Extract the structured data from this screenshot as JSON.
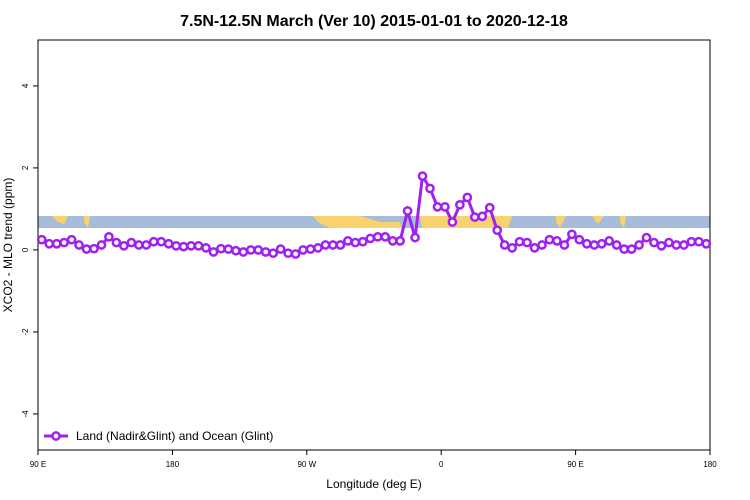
{
  "chart_data": {
    "type": "line",
    "title": "7.5N-12.5N March (Ver 10)   2015-01-01 to 2020-12-18",
    "x_label": "Longitude (deg E)",
    "y_label": "XCO2 - MLO trend (ppm)",
    "xlim": [
      90,
      540
    ],
    "xticks": [
      {
        "value": 90,
        "label": "90 E"
      },
      180,
      {
        "value": 270,
        "label": "90 W"
      },
      {
        "value": 360,
        "label": "0"
      },
      {
        "value": 450,
        "label": "90 E"
      },
      {
        "value": 540,
        "label": "180"
      }
    ],
    "ylim": [
      -4.88,
      5.12
    ],
    "yticks": [
      -4,
      -2,
      0,
      2,
      4
    ],
    "legend": "bottom-left",
    "x": [
      92.5,
      97.5,
      102.5,
      107.5,
      112.5,
      117.5,
      122.5,
      127.5,
      132.5,
      137.5,
      142.5,
      147.5,
      152.5,
      157.5,
      162.5,
      167.5,
      172.5,
      177.5,
      182.5,
      187.5,
      192.5,
      197.5,
      202.5,
      207.5,
      212.5,
      217.5,
      222.5,
      227.5,
      232.5,
      237.5,
      242.5,
      247.5,
      252.5,
      257.5,
      262.5,
      267.5,
      272.5,
      277.5,
      282.5,
      287.5,
      292.5,
      297.5,
      302.5,
      307.5,
      312.5,
      317.5,
      322.5,
      327.5,
      332.5,
      337.5,
      342.5,
      347.5,
      352.5,
      357.5,
      362.5,
      367.5,
      372.5,
      377.5,
      382.5,
      387.5,
      392.5,
      397.5,
      402.5,
      407.5,
      412.5,
      417.5,
      422.5,
      427.5,
      432.5,
      437.5,
      442.5,
      447.5,
      452.5,
      457.5,
      462.5,
      467.5,
      472.5,
      477.5,
      482.5,
      487.5,
      492.5,
      497.5,
      502.5,
      507.5,
      512.5,
      517.5,
      522.5,
      527.5,
      532.5,
      537.5
    ],
    "series": [
      {
        "name": "Land (Nadir&Glint) and Ocean (Glint)",
        "color": "#a020f0",
        "values": [
          0.25,
          0.15,
          0.15,
          0.18,
          0.25,
          0.12,
          0.02,
          0.03,
          0.12,
          0.32,
          0.18,
          0.1,
          0.18,
          0.12,
          0.12,
          0.2,
          0.2,
          0.15,
          0.1,
          0.08,
          0.1,
          0.1,
          0.05,
          -0.05,
          0.03,
          0.02,
          -0.02,
          -0.05,
          0,
          0,
          -0.05,
          -0.08,
          0.02,
          -0.08,
          -0.1,
          0,
          0.02,
          0.05,
          0.12,
          0.12,
          0.12,
          0.22,
          0.18,
          0.2,
          0.28,
          0.32,
          0.32,
          0.22,
          0.22,
          0.95,
          0.3,
          1.8,
          1.5,
          1.05,
          1.05,
          0.68,
          1.1,
          1.28,
          0.8,
          0.82,
          1.03,
          0.48,
          0.12,
          0.05,
          0.2,
          0.18,
          0.05,
          0.12,
          0.25,
          0.22,
          0.12,
          0.38,
          0.25,
          0.15,
          0.12,
          0.15,
          0.22,
          0.12,
          0.02,
          0.02,
          0.12,
          0.3,
          0.18,
          0.1,
          0.18,
          0.12,
          0.12,
          0.2,
          0.2,
          0.15
        ]
      }
    ]
  }
}
